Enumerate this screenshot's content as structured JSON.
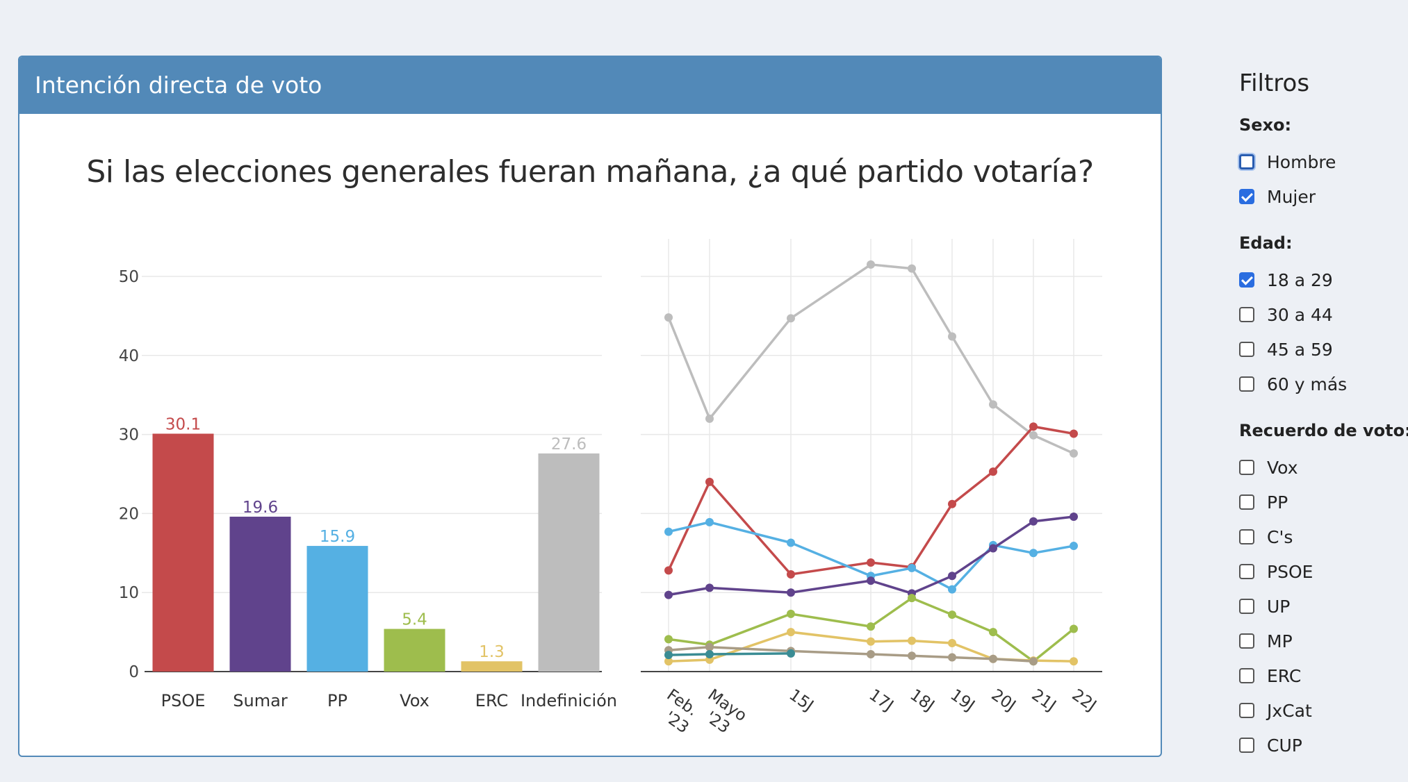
{
  "panel": {
    "title": "Intención directa de voto",
    "question": "Si las elecciones generales fueran mañana, ¿a qué partido votaría?"
  },
  "chart_data": [
    {
      "type": "bar",
      "categories": [
        "PSOE",
        "Sumar",
        "PP",
        "Vox",
        "ERC",
        "Indefinición"
      ],
      "values": [
        30.1,
        19.6,
        15.9,
        5.4,
        1.3,
        27.6
      ],
      "colors": [
        "#c44a4b",
        "#60438c",
        "#55b0e3",
        "#9ebd4d",
        "#e2c366",
        "#bdbdbd"
      ],
      "yticks": [
        0,
        10,
        20,
        30,
        40,
        50
      ],
      "ylim": [
        0,
        55
      ],
      "grid": true
    },
    {
      "type": "line",
      "x": [
        "Feb. '23",
        "Mayo '23",
        "15J",
        "17J",
        "18J",
        "19J",
        "20J",
        "21J",
        "22J"
      ],
      "ylim": [
        0,
        55
      ],
      "grid": true,
      "series": [
        {
          "color": "#bdbdbd",
          "values": [
            44.8,
            32,
            44.7,
            51.5,
            51,
            42.4,
            33.8,
            29.9,
            27.6
          ]
        },
        {
          "color": "#c44a4b",
          "values": [
            12.8,
            24,
            12.3,
            13.8,
            13.2,
            21.2,
            25.3,
            31,
            30.1
          ]
        },
        {
          "color": "#55b0e3",
          "values": [
            17.7,
            18.9,
            16.3,
            12.1,
            13.1,
            10.4,
            16,
            15,
            15.9
          ]
        },
        {
          "color": "#60438c",
          "values": [
            9.7,
            10.6,
            10,
            11.5,
            9.9,
            12.1,
            15.6,
            19,
            19.6
          ]
        },
        {
          "color": "#9ebd4d",
          "values": [
            4.1,
            3.4,
            7.3,
            5.7,
            9.3,
            7.2,
            5,
            1.3,
            5.4
          ]
        },
        {
          "color": "#e2c366",
          "values": [
            1.3,
            1.5,
            5,
            3.8,
            3.9,
            3.6,
            1.6,
            1.4,
            1.3
          ]
        },
        {
          "color": "#a89c86",
          "values": [
            2.7,
            3.1,
            2.6,
            2.2,
            2,
            1.8,
            1.6,
            1.3,
            null
          ]
        },
        {
          "color": "#3a8c94",
          "values": [
            2.1,
            2.2,
            2.3,
            null,
            null,
            null,
            null,
            null,
            null
          ]
        }
      ]
    }
  ],
  "filters": {
    "title": "Filtros",
    "groups": [
      {
        "title": "Sexo:",
        "options": [
          {
            "label": "Hombre",
            "checked": false,
            "focused": true
          },
          {
            "label": "Mujer",
            "checked": true
          }
        ]
      },
      {
        "title": "Edad:",
        "options": [
          {
            "label": "18 a 29",
            "checked": true
          },
          {
            "label": "30 a 44",
            "checked": false
          },
          {
            "label": "45 a 59",
            "checked": false
          },
          {
            "label": "60 y más",
            "checked": false
          }
        ]
      },
      {
        "title": "Recuerdo de voto:",
        "options": [
          {
            "label": "Vox",
            "checked": false
          },
          {
            "label": "PP",
            "checked": false
          },
          {
            "label": "C's",
            "checked": false
          },
          {
            "label": "PSOE",
            "checked": false
          },
          {
            "label": "UP",
            "checked": false
          },
          {
            "label": "MP",
            "checked": false
          },
          {
            "label": "ERC",
            "checked": false
          },
          {
            "label": "JxCat",
            "checked": false
          },
          {
            "label": "CUP",
            "checked": false
          }
        ]
      }
    ]
  }
}
